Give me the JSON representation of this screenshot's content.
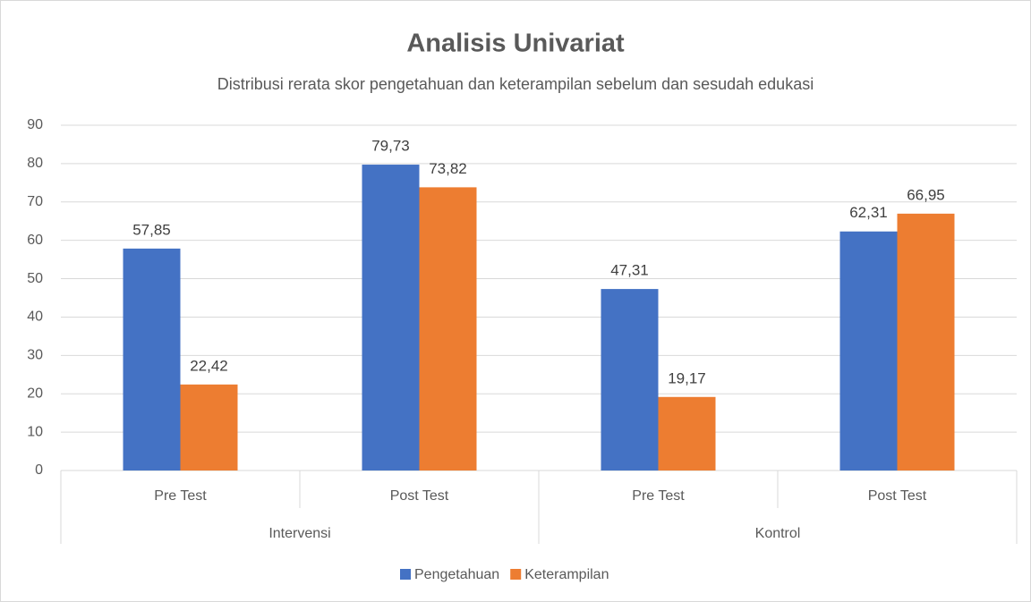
{
  "chart_data": {
    "type": "bar",
    "title": "Analisis Univariat",
    "subtitle": "Distribusi rerata skor pengetahuan dan keterampilan sebelum dan sesudah edukasi",
    "categories": [
      "Pre Test",
      "Post Test",
      "Pre Test",
      "Post Test"
    ],
    "groups": [
      "Intervensi",
      "Kontrol"
    ],
    "series": [
      {
        "name": "Pengetahuan",
        "color": "#4472c4",
        "values": [
          57.85,
          79.73,
          47.31,
          62.31
        ],
        "value_labels": [
          "57,85",
          "79,73",
          "47,31",
          "62,31"
        ]
      },
      {
        "name": "Keterampilan",
        "color": "#ed7d31",
        "values": [
          22.42,
          73.82,
          19.17,
          66.95
        ],
        "value_labels": [
          "22,42",
          "73,82",
          "19,17",
          "66,95"
        ]
      }
    ],
    "ylim": [
      0,
      90
    ],
    "yticks": [
      0,
      10,
      20,
      30,
      40,
      50,
      60,
      70,
      80,
      90
    ],
    "grid": true,
    "legend": "bottom"
  }
}
